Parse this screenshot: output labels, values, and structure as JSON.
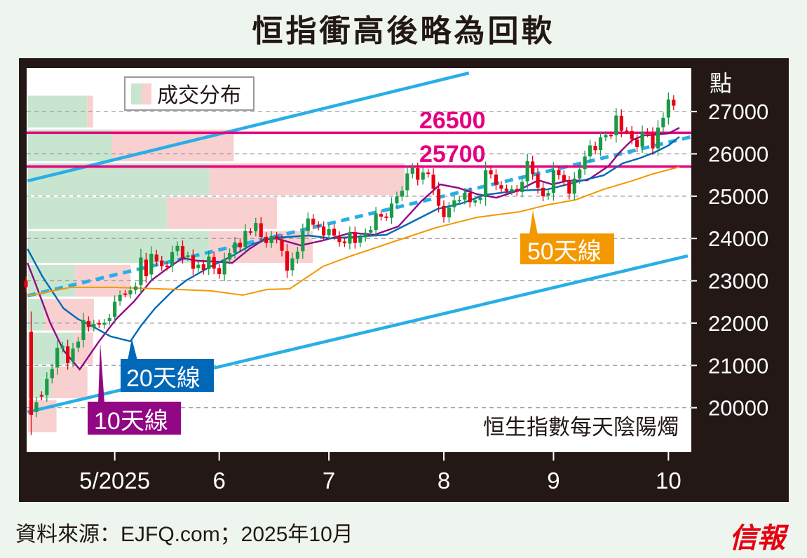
{
  "title": "恒指衝高後略為回軟",
  "source": "資料來源：EJFQ.com；2025年10月",
  "logo": "信報",
  "colors": {
    "up": "#1a9a47",
    "down": "#e60012",
    "magenta": "#e4007f",
    "channel": "#29aee6",
    "ma10": "#920783",
    "ma20": "#0068b7",
    "ma50": "#f39800",
    "vol_up": "#c8e6cf",
    "vol_down": "#f8d0d0"
  },
  "chart_data": {
    "type": "candlestick",
    "title": "恒生指數每天陰陽燭",
    "ylabel": "點",
    "ylim": [
      18950,
      28030
    ],
    "xlim": [
      -0.6,
      127.5
    ],
    "grid": true,
    "yticks": [
      20000,
      21000,
      22000,
      23000,
      24000,
      25000,
      26000,
      27000
    ],
    "ytick_labels": [
      "20000",
      "21000",
      "22000",
      "23000",
      "24000",
      "25000",
      "26000",
      "27000"
    ],
    "xticks": [
      {
        "index": 17,
        "label": "5/2025"
      },
      {
        "index": 37,
        "label": "6"
      },
      {
        "index": 58,
        "label": "7"
      },
      {
        "index": 80,
        "label": "8"
      },
      {
        "index": 101,
        "label": "9"
      },
      {
        "index": 123,
        "label": "10"
      }
    ],
    "close": [
      22849,
      19828,
      20127,
      20264,
      20681,
      20915,
      21417,
      21466,
      21057,
      21395,
      21562,
      22072,
      21909,
      21980,
      21972,
      22008,
      22119,
      22504,
      22662,
      22691,
      22775,
      22868,
      23549,
      23108,
      23640,
      23453,
      23345,
      23332,
      23681,
      23827,
      23544,
      23601,
      23282,
      23381,
      23258,
      23573,
      23290,
      23158,
      23512,
      23654,
      23907,
      23792,
      24181,
      24162,
      24367,
      24035,
      23892,
      24061,
      23980,
      23710,
      23238,
      23530,
      23689,
      24177,
      24474,
      24325,
      24284,
      24072,
      24221,
      24069,
      23916,
      23887,
      24148,
      23892,
      24028,
      24139,
      24203,
      24590,
      24517,
      24498,
      24826,
      24994,
      25130,
      25538,
      25667,
      25388,
      25562,
      25524,
      25176,
      24773,
      24507,
      24733,
      24902,
      24910,
      25081,
      24858,
      24907,
      24969,
      25613,
      25519,
      25270,
      25176,
      25122,
      25166,
      25105,
      25339,
      25829,
      25525,
      25201,
      25000,
      25077,
      25617,
      25497,
      25343,
      25058,
      25418,
      25633,
      25938,
      26200,
      26086,
      26388,
      26446,
      26438,
      26908,
      26544,
      26546,
      26344,
      26159,
      26519,
      26485,
      26128,
      26622,
      26856,
      27287,
      27141
    ],
    "open": [
      23000,
      21800,
      19900,
      20300,
      20300,
      20700,
      20950,
      21400,
      21450,
      21100,
      21420,
      21600,
      22050,
      21900,
      22000,
      21960,
      22050,
      22150,
      22520,
      22700,
      22680,
      22780,
      22900,
      23500,
      23150,
      23620,
      23480,
      23360,
      23350,
      23700,
      23820,
      23560,
      23600,
      23300,
      23390,
      23280,
      23560,
      23300,
      23150,
      23500,
      23660,
      23900,
      23800,
      24170,
      24170,
      24360,
      24040,
      23890,
      24060,
      23970,
      23700,
      23250,
      23520,
      23700,
      24180,
      24470,
      24320,
      24280,
      24080,
      24230,
      24060,
      23930,
      23880,
      24150,
      23900,
      24030,
      24140,
      24200,
      24580,
      24520,
      24490,
      24830,
      24990,
      25140,
      25530,
      25660,
      25390,
      25560,
      25510,
      25170,
      24770,
      24500,
      24740,
      24900,
      24920,
      25080,
      24850,
      24910,
      24980,
      25610,
      25510,
      25260,
      25180,
      25120,
      25170,
      25100,
      25350,
      25820,
      25520,
      25200,
      25010,
      25080,
      25620,
      25500,
      25340,
      25060,
      25420,
      25640,
      25940,
      26190,
      26090,
      26390,
      26450,
      26440,
      26900,
      26550,
      26540,
      26340,
      26170,
      26520,
      26480,
      26130,
      26630,
      26860,
      27280
    ],
    "volume_profile": {
      "legend": "成交分布",
      "bands": [
        {
          "lo": 26600,
          "hi": 27400,
          "up": 73,
          "down": 7
        },
        {
          "lo": 25800,
          "hi": 26600,
          "up": 103,
          "down": 150
        },
        {
          "lo": 25000,
          "hi": 25800,
          "up": 223,
          "down": 240
        },
        {
          "lo": 24200,
          "hi": 25000,
          "up": 171,
          "down": 135
        },
        {
          "lo": 23400,
          "hi": 24200,
          "up": 223,
          "down": 127
        },
        {
          "lo": 22600,
          "hi": 23400,
          "up": 58,
          "down": 68
        },
        {
          "lo": 21800,
          "hi": 22600,
          "up": 20,
          "down": 61
        },
        {
          "lo": 21000,
          "hi": 21800,
          "up": 57,
          "down": 23
        },
        {
          "lo": 20200,
          "hi": 21000,
          "up": 28,
          "down": 45
        },
        {
          "lo": 19400,
          "hi": 20200,
          "up": 0,
          "down": 35
        }
      ]
    },
    "moving_averages": [
      {
        "name": "10天線",
        "key": "ma10",
        "points": [
          [
            0.3,
            23424
          ],
          [
            1.6,
            23010
          ],
          [
            4.6,
            22017
          ],
          [
            7.2,
            21354
          ],
          [
            10.3,
            20907
          ],
          [
            14,
            21570
          ],
          [
            17.3,
            22100
          ],
          [
            20.7,
            22513
          ],
          [
            24,
            23010
          ],
          [
            26.7,
            23258
          ],
          [
            30,
            23540
          ],
          [
            32.8,
            23474
          ],
          [
            36.1,
            23457
          ],
          [
            39.5,
            23424
          ],
          [
            42.8,
            23755
          ],
          [
            45.5,
            23970
          ],
          [
            47.9,
            24003
          ],
          [
            50.2,
            23921
          ],
          [
            52.6,
            23838
          ],
          [
            56.9,
            23954
          ],
          [
            62.3,
            24136
          ],
          [
            66.7,
            24086
          ],
          [
            71.3,
            24285
          ],
          [
            75.7,
            24881
          ],
          [
            79.3,
            25278
          ],
          [
            82.8,
            25195
          ],
          [
            86.4,
            25046
          ],
          [
            90.1,
            24964
          ],
          [
            94.1,
            25129
          ],
          [
            98.1,
            25378
          ],
          [
            100.8,
            25278
          ],
          [
            103.5,
            25361
          ],
          [
            107.5,
            25378
          ],
          [
            111.5,
            25709
          ],
          [
            113.7,
            26040
          ],
          [
            116,
            26321
          ],
          [
            118.3,
            26437
          ],
          [
            120.9,
            26454
          ],
          [
            123.1,
            26487
          ],
          [
            125.1,
            26619
          ]
        ]
      },
      {
        "name": "20天線",
        "key": "ma20",
        "points": [
          [
            0.3,
            23755
          ],
          [
            3.2,
            23093
          ],
          [
            7.2,
            22348
          ],
          [
            9.9,
            22100
          ],
          [
            12.6,
            21934
          ],
          [
            16.2,
            21686
          ],
          [
            20,
            21570
          ],
          [
            22,
            21934
          ],
          [
            24.7,
            22348
          ],
          [
            28.1,
            22762
          ],
          [
            30.7,
            23010
          ],
          [
            35.4,
            23341
          ],
          [
            39.5,
            23590
          ],
          [
            43.5,
            23871
          ],
          [
            46.8,
            24003
          ],
          [
            50.2,
            24037
          ],
          [
            54.2,
            24070
          ],
          [
            58.3,
            24003
          ],
          [
            62.7,
            24037
          ],
          [
            69,
            24086
          ],
          [
            73,
            24335
          ],
          [
            78.8,
            24699
          ],
          [
            83.4,
            24831
          ],
          [
            87.8,
            25030
          ],
          [
            94.1,
            25129
          ],
          [
            99.9,
            25162
          ],
          [
            102.6,
            25245
          ],
          [
            106.2,
            25361
          ],
          [
            110.6,
            25493
          ],
          [
            114.2,
            25775
          ],
          [
            117.7,
            25907
          ],
          [
            120.4,
            26040
          ],
          [
            123.1,
            26205
          ],
          [
            125.1,
            26404
          ]
        ]
      },
      {
        "name": "50天線",
        "key": "ma50",
        "points": [
          [
            0.3,
            22646
          ],
          [
            8.6,
            22845
          ],
          [
            16.6,
            22845
          ],
          [
            28.7,
            22795
          ],
          [
            35.4,
            22762
          ],
          [
            41.5,
            22662
          ],
          [
            46.2,
            22795
          ],
          [
            50.5,
            22811
          ],
          [
            52.9,
            23010
          ],
          [
            56.9,
            23341
          ],
          [
            62.3,
            23590
          ],
          [
            70.3,
            23921
          ],
          [
            78.4,
            24252
          ],
          [
            86.4,
            24500
          ],
          [
            94.5,
            24632
          ],
          [
            99.9,
            24798
          ],
          [
            105.2,
            24914
          ],
          [
            110.6,
            25162
          ],
          [
            116,
            25361
          ],
          [
            120,
            25527
          ],
          [
            125.1,
            25692
          ]
        ]
      }
    ],
    "trend_lines": [
      {
        "name": "upper-channel",
        "from": [
          0.3,
          25361
        ],
        "to": [
          84.8,
          27911
        ],
        "style": "solid"
      },
      {
        "name": "lower-channel",
        "from": [
          0.3,
          19897
        ],
        "to": [
          126.7,
          23589
        ],
        "style": "solid"
      },
      {
        "name": "mid-trend",
        "from": [
          0.3,
          22646
        ],
        "to": [
          127.4,
          26404
        ],
        "style": "dashed"
      }
    ],
    "levels": [
      {
        "value": 26500,
        "label": "26500"
      },
      {
        "value": 25700,
        "label": "25700"
      }
    ],
    "annotations": {
      "ma10": "10天線",
      "ma20": "20天線",
      "ma50": "50天線"
    }
  }
}
